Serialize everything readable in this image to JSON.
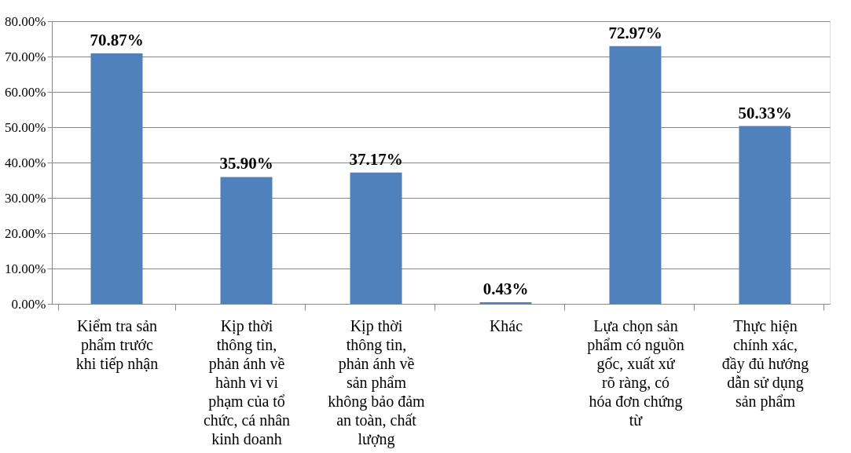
{
  "chart_data": {
    "type": "bar",
    "categories": [
      "Kiểm tra sản phẩm trước khi tiếp nhận",
      "Kịp thời thông tin, phản ánh về hành vi vi phạm của tổ chức, cá nhân kinh doanh",
      "Kịp thời thông tin, phản ánh về sản phẩm không bảo đảm an toàn, chất lượng",
      "Khác",
      "Lựa chọn sản phẩm có nguồn gốc, xuất xứ rõ ràng, có hóa đơn chứng từ",
      "Thực hiện chính xác, đầy đủ hướng dẫn sử dụng sản phẩm"
    ],
    "values": [
      70.87,
      35.9,
      37.17,
      0.43,
      72.97,
      50.33
    ],
    "value_labels": [
      "70.87%",
      "35.90%",
      "37.17%",
      "0.43%",
      "72.97%",
      "50.33%"
    ],
    "color": "#4f81bd",
    "ylim": [
      0,
      80
    ],
    "yticks": [
      {
        "value": 0,
        "label": "0.00%"
      },
      {
        "value": 10,
        "label": "10.00%"
      },
      {
        "value": 20,
        "label": "20.00%"
      },
      {
        "value": 30,
        "label": "30.00%"
      },
      {
        "value": 40,
        "label": "40.00%"
      },
      {
        "value": 50,
        "label": "50.00%"
      },
      {
        "value": 60,
        "label": "60.00%"
      },
      {
        "value": 70,
        "label": "70.00%"
      },
      {
        "value": 80,
        "label": "80.00%"
      }
    ],
    "grid": "y"
  }
}
